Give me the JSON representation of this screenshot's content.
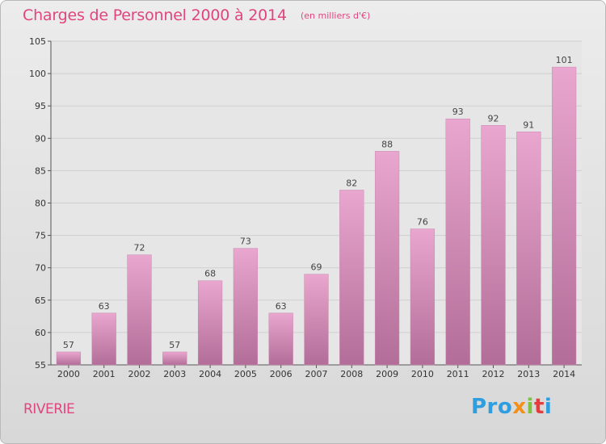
{
  "title": "Charges de Personnel 2000 à 2014",
  "subtitle": "(en milliers d'€)",
  "location": "RIVERIE",
  "logo": {
    "p1": "Pro",
    "p2": "x",
    "p3": "i",
    "p4": "t",
    "p5": "i"
  },
  "colors": {
    "bar_top": "#e9a6ce",
    "bar_bottom": "#b26e98",
    "title": "#e0457e"
  },
  "chart_data": {
    "type": "bar",
    "categories": [
      "2000",
      "2001",
      "2002",
      "2003",
      "2004",
      "2005",
      "2006",
      "2007",
      "2008",
      "2009",
      "2010",
      "2011",
      "2012",
      "2013",
      "2014"
    ],
    "values": [
      57,
      63,
      72,
      57,
      68,
      73,
      63,
      69,
      82,
      88,
      76,
      93,
      92,
      91,
      101
    ],
    "title": "Charges de Personnel 2000 à 2014",
    "subtitle": "(en milliers d'€)",
    "xlabel": "",
    "ylabel": "",
    "ylim": [
      55,
      105
    ],
    "yticks": [
      55,
      60,
      65,
      70,
      75,
      80,
      85,
      90,
      95,
      100,
      105
    ],
    "grid": true,
    "legend": "none"
  }
}
